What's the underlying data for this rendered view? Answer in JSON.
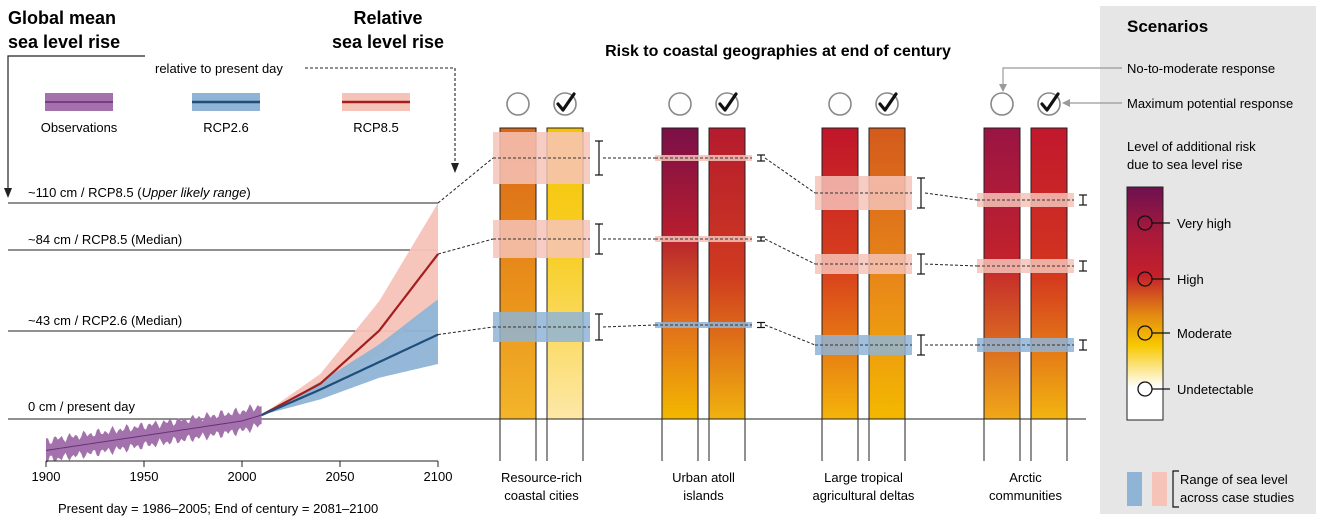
{
  "titles": {
    "global_mean_line1": "Global mean",
    "global_mean_line2": "sea level rise",
    "relative_line1": "Relative",
    "relative_line2": "sea level rise",
    "relative_note": "relative to present day",
    "risk_title": "Risk to coastal geographies at end of century",
    "footnote": "Present day = 1986–2005; End of century = 2081–2100"
  },
  "legend": {
    "observations": "Observations",
    "rcp26": "RCP2.6",
    "rcp85": "RCP8.5"
  },
  "colors": {
    "obs": "#8e4a9a",
    "obs_band": "#a372ad",
    "rcp26": "#1f4e79",
    "rcp26_band": "#8fb4d6",
    "rcp85": "#a31f1f",
    "rcp85_band": "#f6c3b8",
    "panel_bg": "#e6e6e6"
  },
  "levels": [
    {
      "label": "~110 cm / RCP8.5 (",
      "italic": "Upper likely range",
      "suffix": ")",
      "cm": 110
    },
    {
      "label": "~84  cm / RCP8.5 (Median)",
      "cm": 84
    },
    {
      "label": "~43 cm / RCP2.6 (Median)",
      "cm": 43
    },
    {
      "label": "0 cm / present day",
      "cm": 0
    }
  ],
  "chart_data": {
    "type": "line",
    "xlim": [
      1900,
      2100
    ],
    "ylim": [
      -20,
      110
    ],
    "xticks": [
      "1900",
      "1950",
      "2000",
      "2050",
      "2100"
    ],
    "series": [
      {
        "name": "Observations",
        "x": [
          1900,
          1920,
          1940,
          1960,
          1980,
          2000,
          2010
        ],
        "y": [
          -16,
          -13,
          -10,
          -7,
          -4,
          -1,
          2
        ],
        "band": 5
      },
      {
        "name": "RCP2.6",
        "x": [
          2010,
          2040,
          2070,
          2100
        ],
        "y": [
          2,
          15,
          29,
          43
        ],
        "lower": [
          2,
          10,
          21,
          28
        ],
        "upper": [
          2,
          19,
          38,
          61
        ]
      },
      {
        "name": "RCP8.5",
        "x": [
          2010,
          2040,
          2070,
          2100
        ],
        "y": [
          2,
          18,
          45,
          84
        ],
        "lower": [
          2,
          13,
          33,
          61
        ],
        "upper": [
          2,
          23,
          60,
          110
        ]
      }
    ]
  },
  "risk": {
    "geographies": [
      {
        "label1": "Resource-rich",
        "label2": "coastal cities",
        "levels": {
          "high": 0.96,
          "med": 0.6,
          "low": 0.27
        },
        "bar_left": "high",
        "bar_right": "moderate"
      },
      {
        "label1": "Urban atoll",
        "label2": "islands",
        "levels": {
          "high": 0.97,
          "med": 0.78,
          "low": 0.6
        },
        "bar_left": "very high",
        "bar_right": "high"
      },
      {
        "label1": "Large tropical",
        "label2": "agricultural deltas",
        "levels": {
          "high": 0.68,
          "med": 0.4,
          "low": 0.2
        },
        "bar_left": "high",
        "bar_right": "high"
      },
      {
        "label1": "Arctic",
        "label2": "communities",
        "levels": {
          "high": 0.78,
          "med": 0.55,
          "low": 0.3
        },
        "bar_left": "very high",
        "bar_right": "high"
      }
    ]
  },
  "scenarios_panel": {
    "title": "Scenarios",
    "no_response": "No-to-moderate response",
    "max_response": "Maximum potential response",
    "risk_title1": "Level of additional risk",
    "risk_title2": "due to sea level rise",
    "very_high": "Very high",
    "high": "High",
    "moderate": "Moderate",
    "undetectable": "Undetectable",
    "range1": "Range of sea level",
    "range2": "across case studies"
  }
}
